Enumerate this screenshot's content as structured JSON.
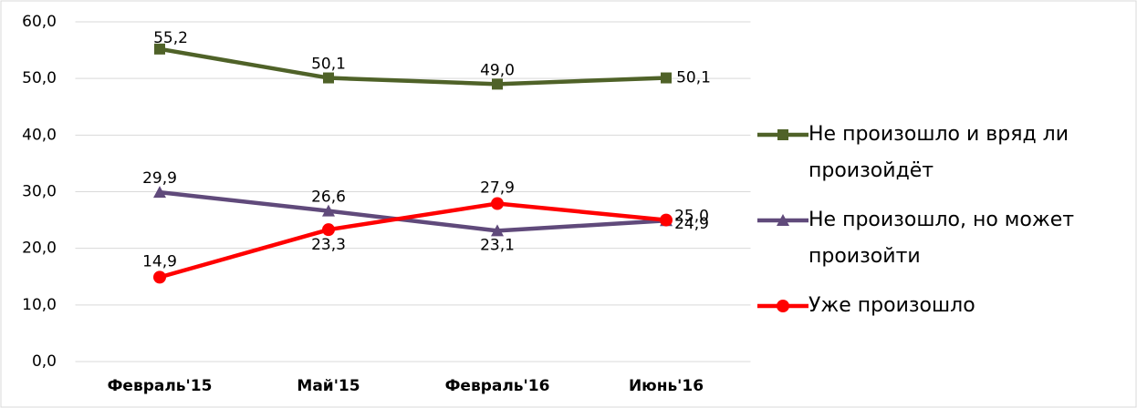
{
  "chart_data": {
    "type": "line",
    "categories": [
      "Февраль'15",
      "Май'15",
      "Февраль'16",
      "Июнь'16"
    ],
    "series": [
      {
        "name": "Не произошло и вряд ли произойдёт",
        "color": "#4f6228",
        "marker": "square",
        "values": [
          55.2,
          50.1,
          49.0,
          50.1
        ],
        "value_labels": [
          "55,2",
          "50,1",
          "49,0",
          "50,1"
        ]
      },
      {
        "name": "Не произошло, но может произойти",
        "color": "#604a7b",
        "marker": "triangle",
        "values": [
          29.9,
          26.6,
          23.1,
          24.9
        ],
        "value_labels": [
          "29,9",
          "26,6",
          "23,1",
          "24,9"
        ]
      },
      {
        "name": "Уже произошло",
        "color": "#ff0000",
        "marker": "circle",
        "values": [
          14.9,
          23.3,
          27.9,
          25.0
        ],
        "value_labels": [
          "14,9",
          "23,3",
          "27,9",
          "25,0"
        ]
      }
    ],
    "ylim": [
      0,
      60
    ],
    "yticks": [
      {
        "value": 0,
        "label": "0,0"
      },
      {
        "value": 10,
        "label": "10,0"
      },
      {
        "value": 20,
        "label": "20,0"
      },
      {
        "value": 30,
        "label": "30,0"
      },
      {
        "value": 40,
        "label": "40,0"
      },
      {
        "value": 50,
        "label": "50,0"
      },
      {
        "value": 60,
        "label": "60,0"
      }
    ],
    "grid": true,
    "legend": "right"
  }
}
